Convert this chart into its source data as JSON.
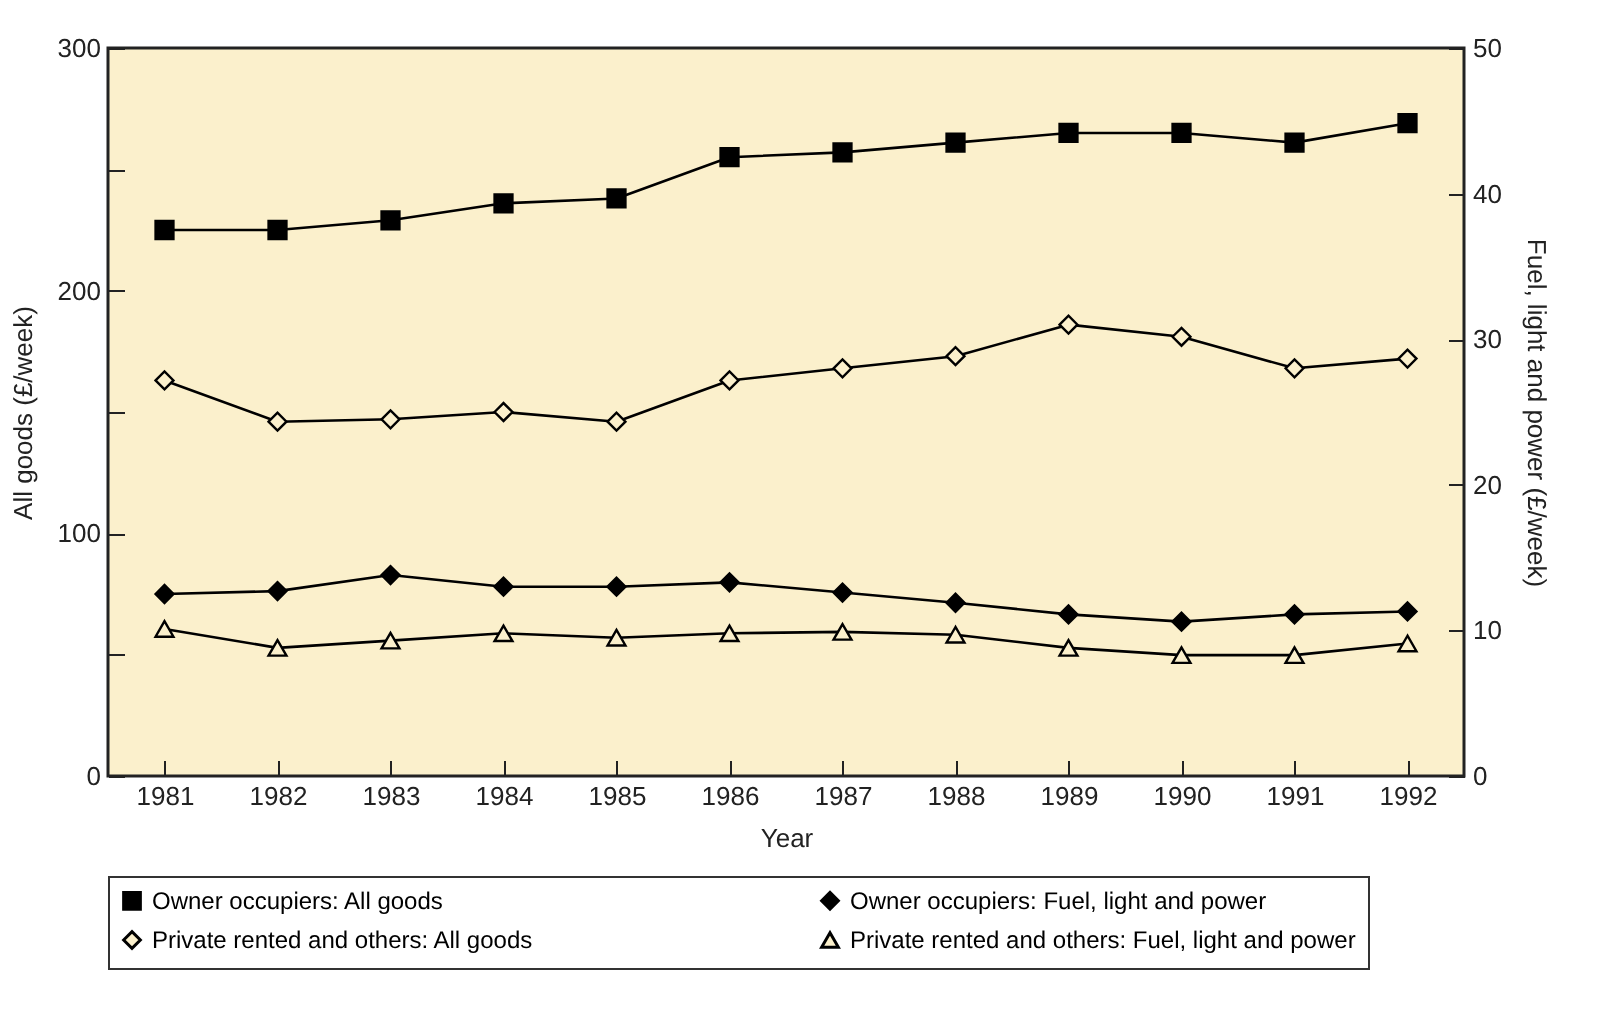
{
  "chart_data": {
    "type": "line",
    "xlabel": "Year",
    "ylabel": "All goods (£/week)",
    "y2label": "Fuel, light and power (£/week)",
    "categories": [
      "1981",
      "1982",
      "1983",
      "1984",
      "1985",
      "1986",
      "1987",
      "1988",
      "1989",
      "1990",
      "1991",
      "1992"
    ],
    "ylim": [
      0,
      300
    ],
    "yticks": [
      0,
      {
        "value": 50,
        "label": null
      },
      100,
      {
        "value": 150,
        "label": null
      },
      200,
      {
        "value": 250,
        "label": null
      },
      300
    ],
    "y2lim": [
      0,
      50
    ],
    "y2ticks": [
      0,
      10,
      20,
      30,
      40,
      50
    ],
    "grid": false,
    "legend": "bottom",
    "line_style": "solid",
    "series": [
      {
        "name": "Owner occupiers: All goods",
        "color": "#000000",
        "marker": "square",
        "values": [
          225,
          225,
          229,
          236,
          238,
          255,
          257,
          261,
          265,
          265,
          261,
          269
        ]
      },
      {
        "name": "Owner occupiers: Fuel, light and power",
        "color": "#000000",
        "marker": "diamond",
        "axis": "y2",
        "values": [
          12.5,
          12.7,
          13.8,
          13.0,
          13.0,
          13.3,
          12.6,
          11.9,
          11.1,
          10.6,
          11.1,
          11.3
        ]
      },
      {
        "name": "Private rented and others: All goods",
        "color": "#000000",
        "marker": "diamond",
        "values": [
          163,
          146,
          147,
          150,
          146,
          163,
          168,
          173,
          186,
          181,
          168,
          172
        ]
      },
      {
        "name": "Private rented and others: Fuel, light and power",
        "color": "#000000",
        "marker": "triangle",
        "axis": "y2",
        "values": [
          10.1,
          8.8,
          9.3,
          9.8,
          9.5,
          9.8,
          9.9,
          9.7,
          8.8,
          8.3,
          8.3,
          9.1
        ]
      }
    ]
  }
}
